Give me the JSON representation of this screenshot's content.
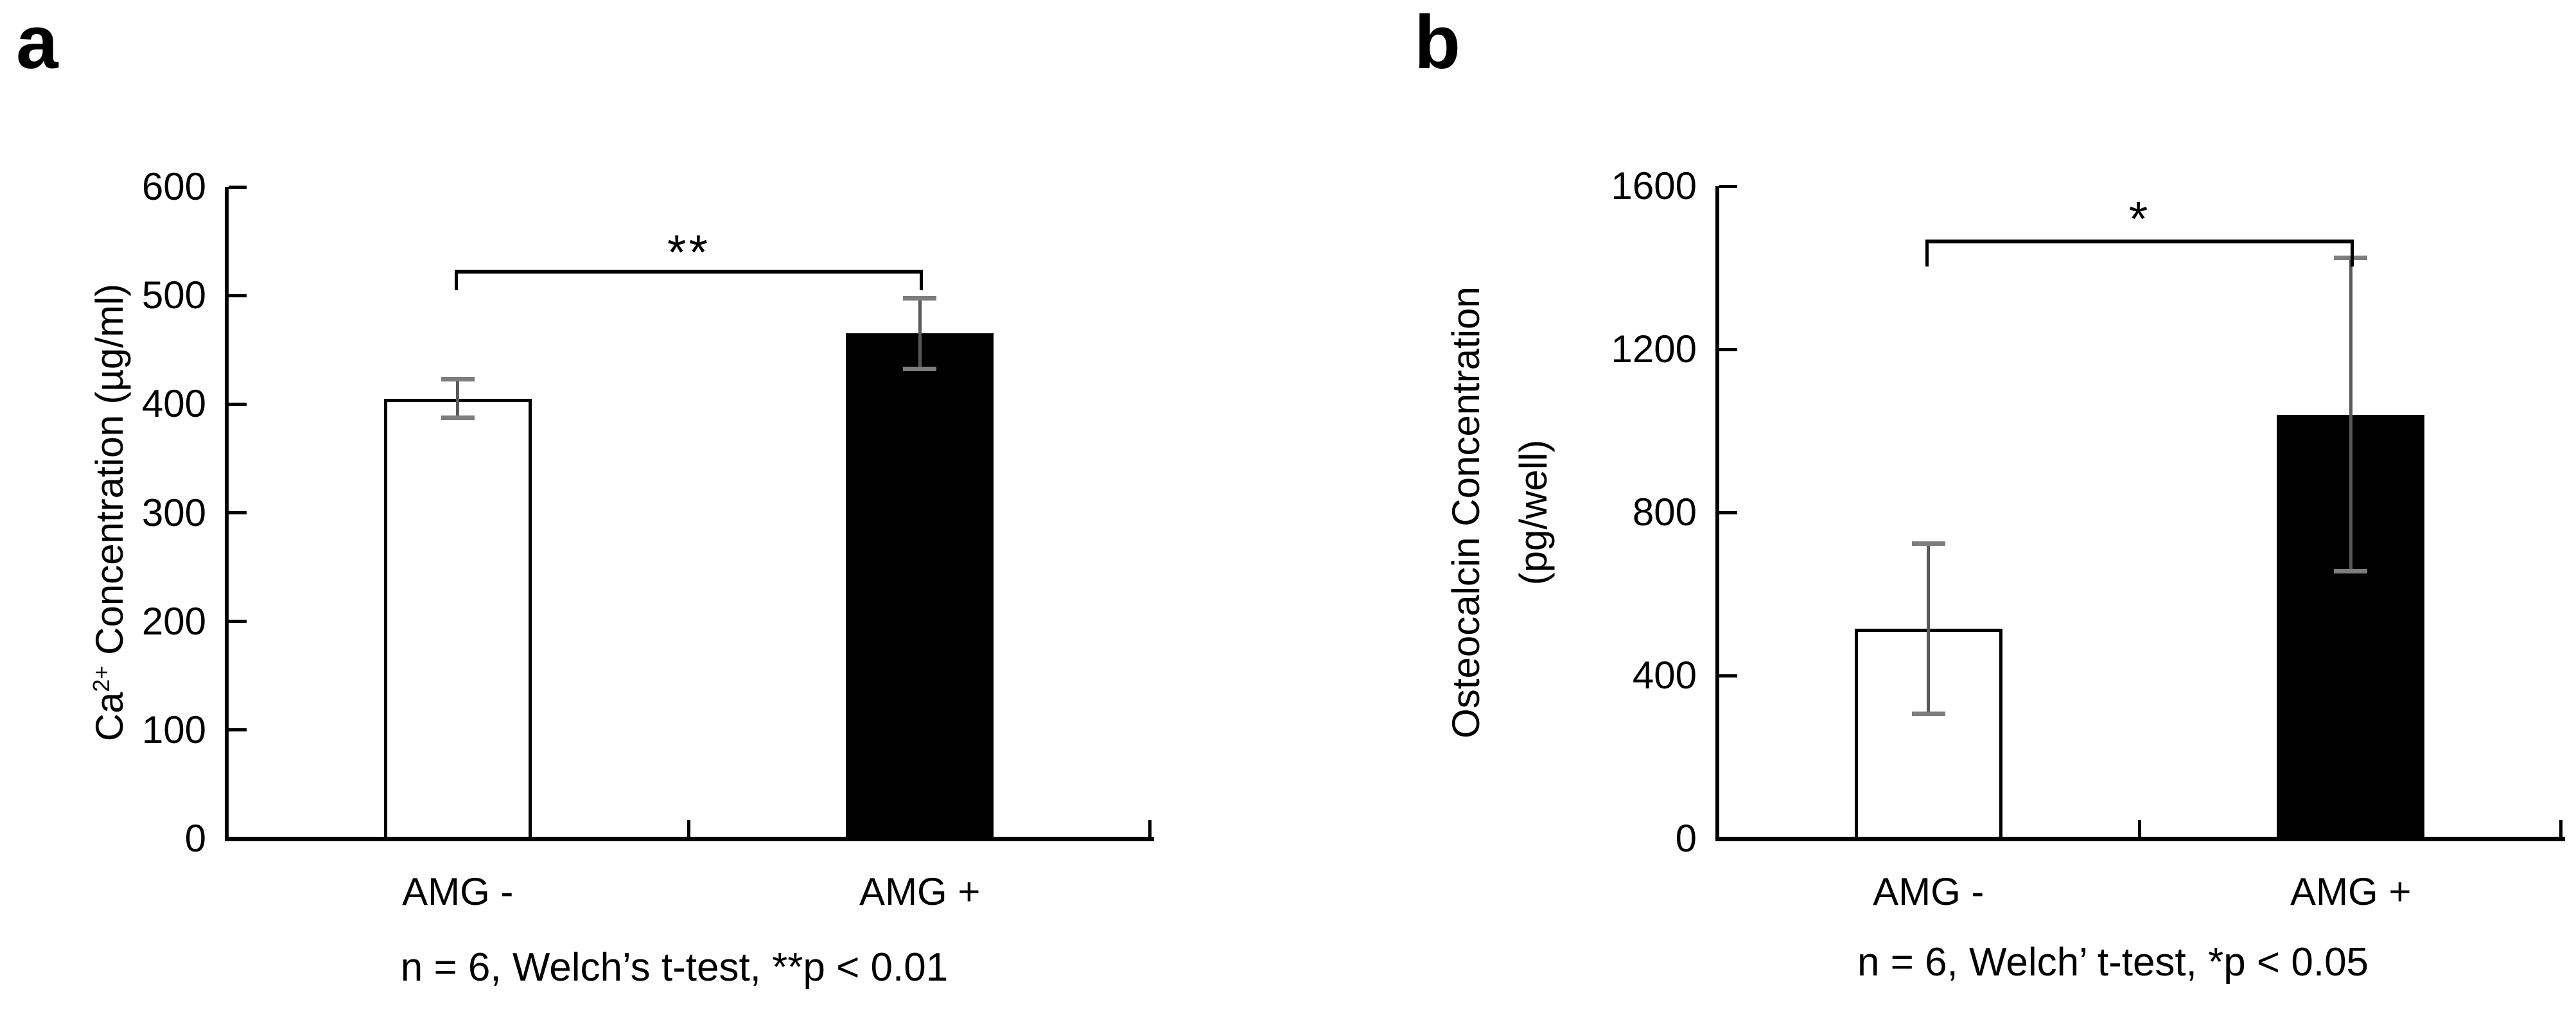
{
  "figure_background": "#ffffff",
  "accent_black": "#000000",
  "error_bar_color": "#595959",
  "error_cap_color": "#7d7d7d",
  "chart_data": [
    {
      "type": "bar",
      "panel": "a",
      "title": "",
      "ylabel": "Ca2+ Concentration (µg/ml)",
      "ylabel_parts": {
        "pre": "Ca",
        "sup": "2+",
        "post": " Concentration (µg/ml)",
        "line2": ""
      },
      "xlabel": "",
      "categories": [
        "AMG -",
        "AMG +"
      ],
      "values": [
        405,
        465
      ],
      "errors": [
        18,
        33
      ],
      "bar_fills": [
        "#ffffff",
        "#000000"
      ],
      "bar_border": "#000000",
      "ylim": [
        0,
        600
      ],
      "ytick_step": 100,
      "yticks": [
        "600",
        "500",
        "400",
        "300",
        "200",
        "100",
        "0"
      ],
      "grid": false,
      "legend": "none",
      "tick_direction": "inside",
      "significance": {
        "symbol": "**",
        "between": [
          "AMG -",
          "AMG +"
        ],
        "note": "n = 6, Welch’s t-test, **p < 0.01"
      }
    },
    {
      "type": "bar",
      "panel": "b",
      "title": "",
      "ylabel": "Osteocalcin Concentration (pg/well)",
      "ylabel_parts": {
        "pre": "Osteocalcin Concentration",
        "sup": "",
        "post": "",
        "line2": "(pg/well)"
      },
      "xlabel": "",
      "categories": [
        "AMG -",
        "AMG +"
      ],
      "values": [
        515,
        1040
      ],
      "errors": [
        210,
        385
      ],
      "bar_fills": [
        "#ffffff",
        "#000000"
      ],
      "bar_border": "#000000",
      "ylim": [
        0,
        1600
      ],
      "ytick_step": 400,
      "yticks": [
        "1600",
        "1200",
        "800",
        "400",
        "0"
      ],
      "grid": false,
      "legend": "none",
      "tick_direction": "inside",
      "significance": {
        "symbol": "*",
        "between": [
          "AMG -",
          "AMG +"
        ],
        "note": "n = 6, Welch’ t-test, *p < 0.05"
      }
    }
  ]
}
